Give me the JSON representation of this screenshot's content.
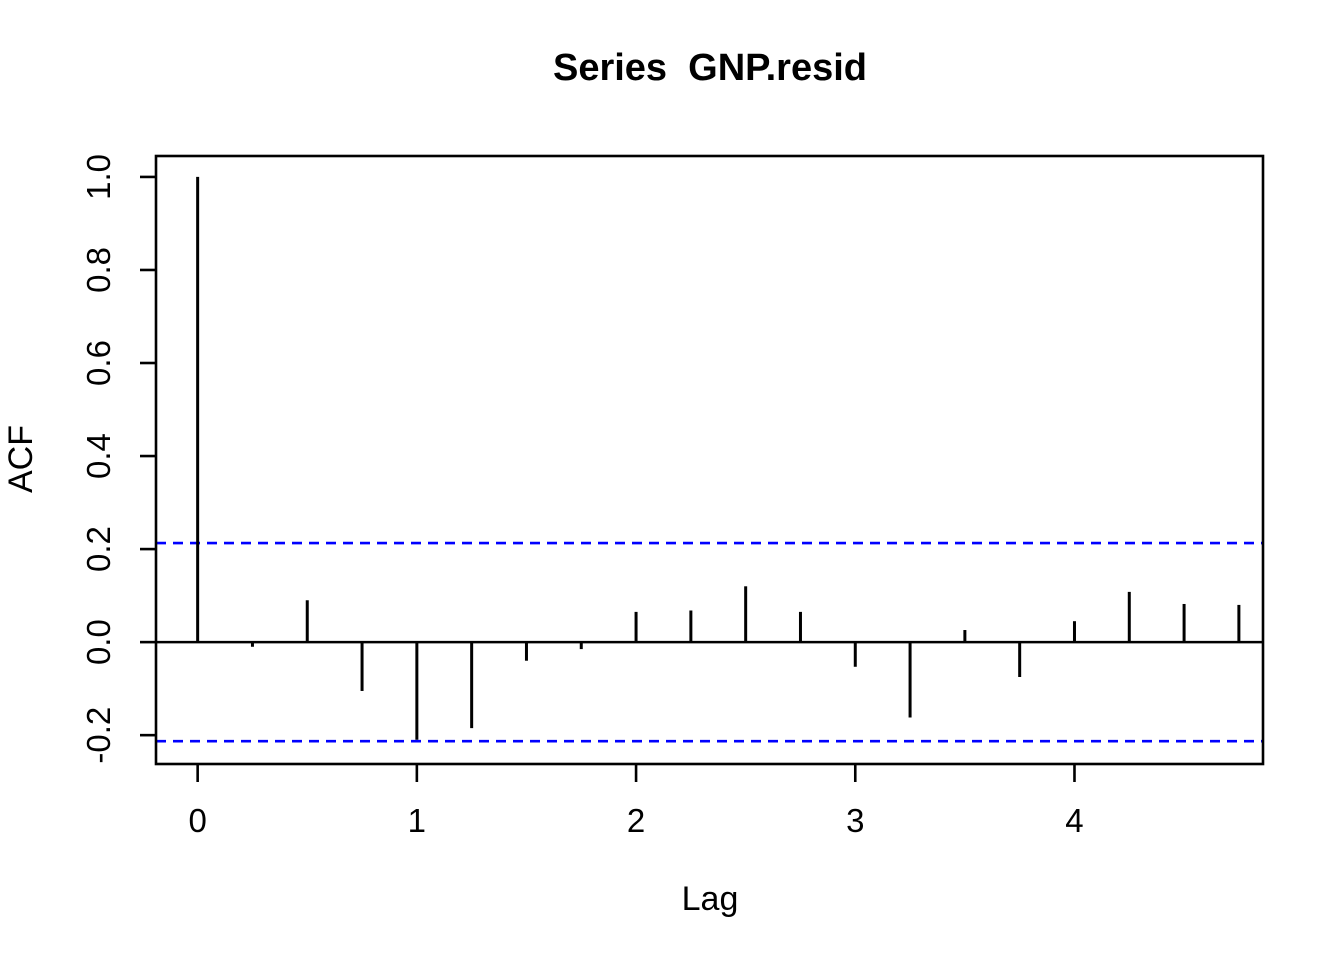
{
  "chart_data": {
    "type": "bar",
    "subtype": "acf-stem-plot",
    "title": "Series  GNP.resid",
    "xlabel": "Lag",
    "ylabel": "ACF",
    "xlim": [
      -0.19,
      4.86
    ],
    "ylim": [
      -0.262,
      1.045
    ],
    "x_ticks": [
      0,
      1,
      2,
      3,
      4
    ],
    "x_tick_labels": [
      "0",
      "1",
      "2",
      "3",
      "4"
    ],
    "y_ticks": [
      1.0,
      0.8,
      0.6,
      0.4,
      0.2,
      0.0,
      -0.2
    ],
    "y_tick_labels": [
      "1.0",
      "0.8",
      "0.6",
      "0.4",
      "0.2",
      "0.0",
      "-0.2"
    ],
    "grid": false,
    "legend": "none",
    "zero_line": 0.0,
    "confidence_bounds": {
      "upper": 0.213,
      "lower": -0.213,
      "style": "dashed",
      "color": "#0000ff"
    },
    "series": [
      {
        "lag": 0.0,
        "acf": 1.0
      },
      {
        "lag": 0.25,
        "acf": -0.01
      },
      {
        "lag": 0.5,
        "acf": 0.09
      },
      {
        "lag": 0.75,
        "acf": -0.105
      },
      {
        "lag": 1.0,
        "acf": -0.21
      },
      {
        "lag": 1.25,
        "acf": -0.185
      },
      {
        "lag": 1.5,
        "acf": -0.04
      },
      {
        "lag": 1.75,
        "acf": -0.015
      },
      {
        "lag": 2.0,
        "acf": 0.065
      },
      {
        "lag": 2.25,
        "acf": 0.068
      },
      {
        "lag": 2.5,
        "acf": 0.12
      },
      {
        "lag": 2.75,
        "acf": 0.065
      },
      {
        "lag": 3.0,
        "acf": -0.053
      },
      {
        "lag": 3.25,
        "acf": -0.162
      },
      {
        "lag": 3.5,
        "acf": 0.026
      },
      {
        "lag": 3.75,
        "acf": -0.075
      },
      {
        "lag": 4.0,
        "acf": 0.045
      },
      {
        "lag": 4.25,
        "acf": 0.108
      },
      {
        "lag": 4.5,
        "acf": 0.082
      },
      {
        "lag": 4.75,
        "acf": 0.08
      }
    ],
    "colors": {
      "stems": "#000000",
      "box": "#000000",
      "confidence": "#0000ff",
      "background": "#ffffff"
    }
  }
}
